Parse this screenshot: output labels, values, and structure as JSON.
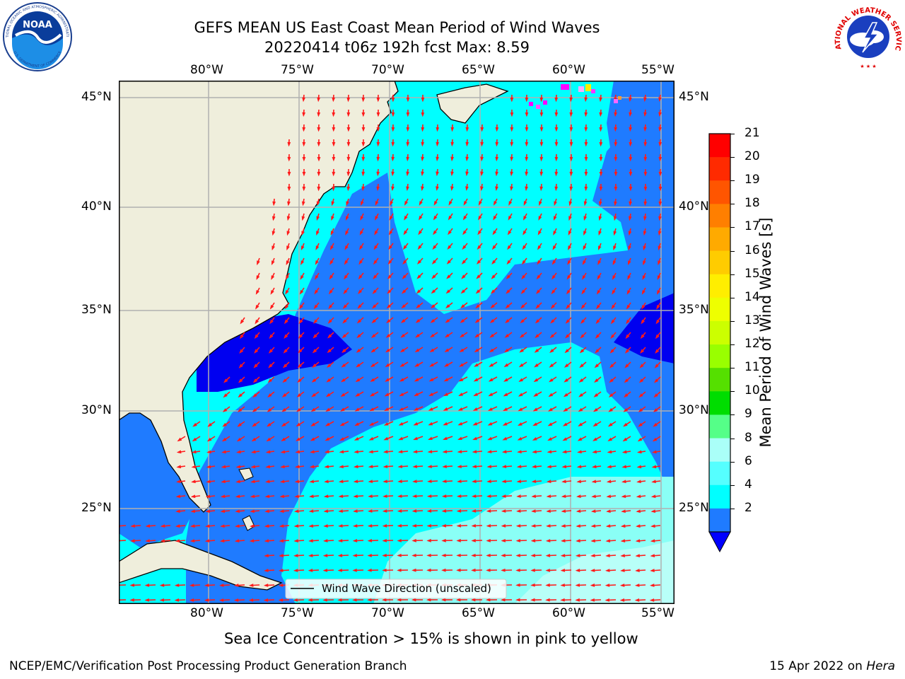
{
  "title": {
    "line1": "GEFS MEAN US East Coast Mean Period of Wind Waves",
    "line2": "20220414 t06z 192h fcst   Max: 8.59"
  },
  "map": {
    "lon_ticks": [
      "80°W",
      "75°W",
      "70°W",
      "65°W",
      "60°W",
      "55°W"
    ],
    "lat_ticks": [
      "45°N",
      "40°N",
      "35°N",
      "30°N",
      "25°N"
    ],
    "legend_label": "Wind Wave Direction (unscaled)",
    "colors": {
      "land": "#efeedc",
      "level_2_4": "#1f7bff",
      "level_0_2": "#0000f0",
      "level_4_6": "#00ffff",
      "level_6_8": "#8afff6",
      "level_8_9": "#b8fff8",
      "arrow": "#ff1a1a",
      "grid": "#b0b0b0"
    }
  },
  "colorbar": {
    "label": "Mean Period of Wind Waves [s]",
    "ticks": [
      "21",
      "20",
      "19",
      "18",
      "17",
      "16",
      "15",
      "14",
      "13",
      "12",
      "11",
      "10",
      "9",
      "8",
      "6",
      "4",
      "2"
    ],
    "colors": [
      "#ff0000",
      "#ff2a00",
      "#ff5500",
      "#ff7f00",
      "#ffaa00",
      "#ffcc00",
      "#ffee00",
      "#eeff00",
      "#ccff00",
      "#99ff00",
      "#55e000",
      "#00dd00",
      "#55ff88",
      "#aafff8",
      "#55ffff",
      "#00ffff",
      "#1f7bff"
    ],
    "extend_color": "#0000ff"
  },
  "subtitle": "Sea Ice Concentration > 15% is shown in pink to yellow",
  "footer": {
    "left": "NCEP/EMC/Verification Post Processing Product Generation Branch",
    "right_date": "15 Apr 2022 on ",
    "right_host": "Hera"
  },
  "logos": {
    "noaa": "NOAA",
    "noaa_ring": "NATIONAL OCEANIC AND ATMOSPHERIC ADMINISTRATION",
    "noaa_ring_bottom": "U.S. DEPARTMENT OF COMMERCE",
    "nws_ring": "NATIONAL WEATHER SERVICE"
  }
}
